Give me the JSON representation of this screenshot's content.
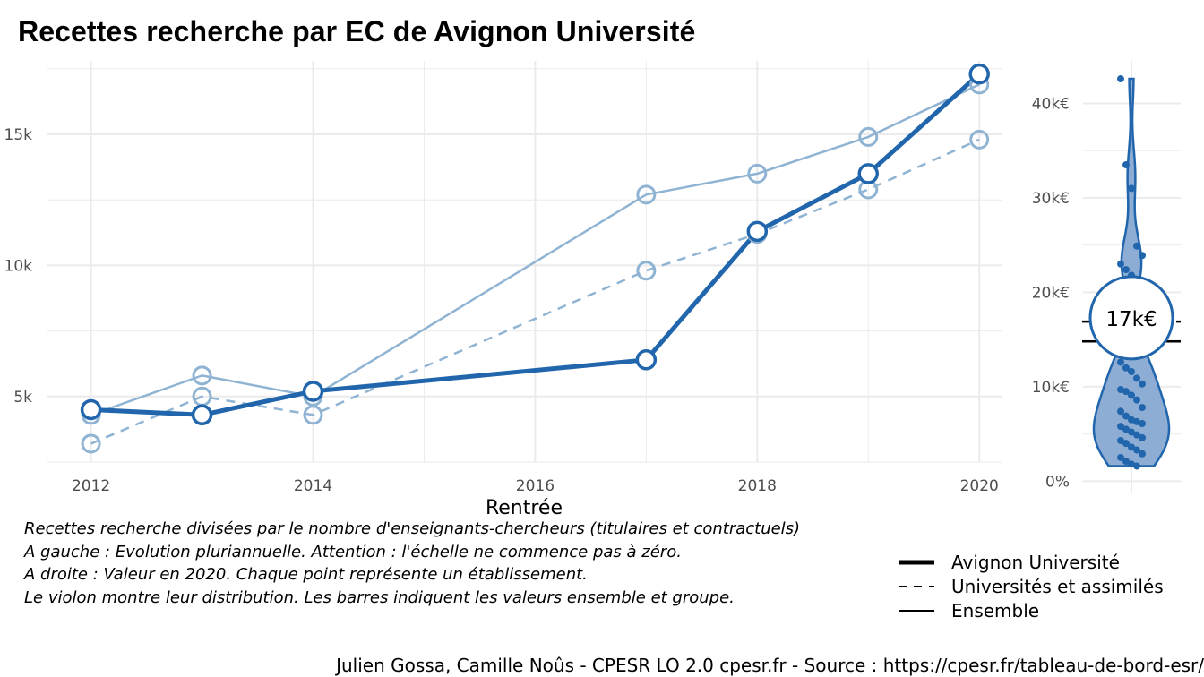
{
  "title": "Recettes recherche par EC de Avignon Université",
  "colors": {
    "primary": "#2166ac",
    "light": "#8fb3d3",
    "violin_fill": "#87a9d2",
    "grid": "#ebebeb"
  },
  "chart_data": [
    {
      "type": "line",
      "xlabel": "Rentrée",
      "ylabel": "",
      "x_ticks": [
        2012,
        2014,
        2016,
        2018,
        2020
      ],
      "y_ticks": [
        5000,
        10000,
        15000
      ],
      "y_tick_labels": [
        "5k",
        "10k",
        "15k"
      ],
      "xlim": [
        2011.6,
        2020.2
      ],
      "ylim": [
        2500,
        17800
      ],
      "grid": true,
      "series": [
        {
          "name": "Avignon Université",
          "style": "thick",
          "x": [
            2012,
            2013,
            2014,
            2017,
            2018,
            2019,
            2020
          ],
          "values": [
            4500,
            4300,
            5200,
            6400,
            11300,
            13500,
            17300
          ]
        },
        {
          "name": "Universités et assimilés",
          "style": "dashed",
          "x": [
            2012,
            2013,
            2014,
            2017,
            2018,
            2019,
            2020
          ],
          "values": [
            3200,
            5000,
            4300,
            9800,
            11200,
            12900,
            14800
          ]
        },
        {
          "name": "Ensemble",
          "style": "thin",
          "x": [
            2012,
            2013,
            2014,
            2017,
            2018,
            2019,
            2020
          ],
          "values": [
            4300,
            5800,
            5000,
            12700,
            13500,
            14900,
            16900
          ]
        }
      ]
    },
    {
      "type": "violin",
      "y_ticks": [
        0,
        10000,
        20000,
        30000,
        40000
      ],
      "y_tick_labels": [
        "0%",
        "10k€",
        "20k€",
        "30k€",
        "40k€"
      ],
      "ylim": [
        -1200,
        44500
      ],
      "grid": true,
      "highlight_value": 17300,
      "highlight_label": "17k€",
      "group_value": 14800,
      "ensemble_value": 16900,
      "points": [
        42600,
        33500,
        31000,
        24900,
        23900,
        23000,
        22400,
        21800,
        14200,
        13600,
        12600,
        12000,
        11600,
        10900,
        10300,
        9700,
        9500,
        9100,
        8600,
        7800,
        7400,
        6900,
        6500,
        6300,
        6100,
        5800,
        5500,
        5200,
        4900,
        4600,
        4300,
        4000,
        3600,
        3300,
        2900,
        2500,
        2100,
        1800,
        1600
      ]
    }
  ],
  "caption": [
    "Recettes recherche divisées par le nombre d'enseignants-chercheurs (titulaires et contractuels)",
    "A gauche : Evolution pluriannuelle. Attention : l'échelle ne commence pas à zéro.",
    "A droite : Valeur en 2020. Chaque point représente un établissement.",
    "Le violon montre leur distribution. Les barres indiquent les valeurs ensemble et groupe."
  ],
  "legend": [
    {
      "label": "Avignon Université",
      "style": "thick"
    },
    {
      "label": "Universités et assimilés",
      "style": "dashed"
    },
    {
      "label": "Ensemble",
      "style": "thin"
    }
  ],
  "footer": "Julien Gossa, Camille Noûs - CPESR LO 2.0 cpesr.fr - Source : https://cpesr.fr/tableau-de-bord-esr/"
}
